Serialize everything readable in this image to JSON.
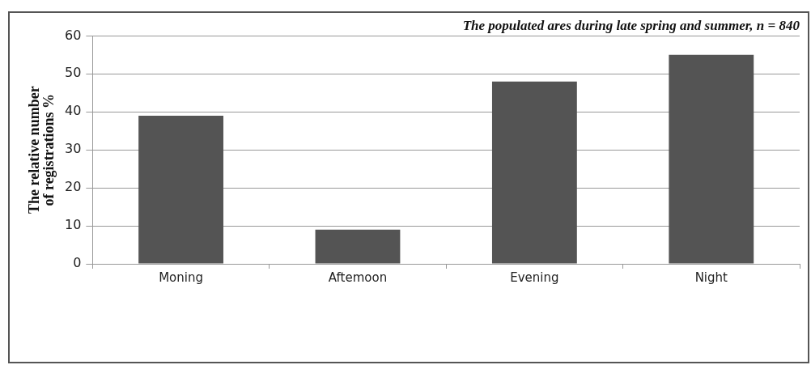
{
  "chart_data": {
    "type": "bar",
    "title": "The populated ares during late spring and summer, n = 840",
    "ylabel": "The relative number of registrations %",
    "categories": [
      "Moning",
      "Aftemoon",
      "Evening",
      "Night"
    ],
    "values": [
      39,
      9,
      48,
      55
    ],
    "color": "#545454",
    "ylim": [
      0,
      60
    ],
    "yticks": [
      0,
      10,
      20,
      30,
      40,
      50,
      60
    ],
    "grid": "y"
  }
}
